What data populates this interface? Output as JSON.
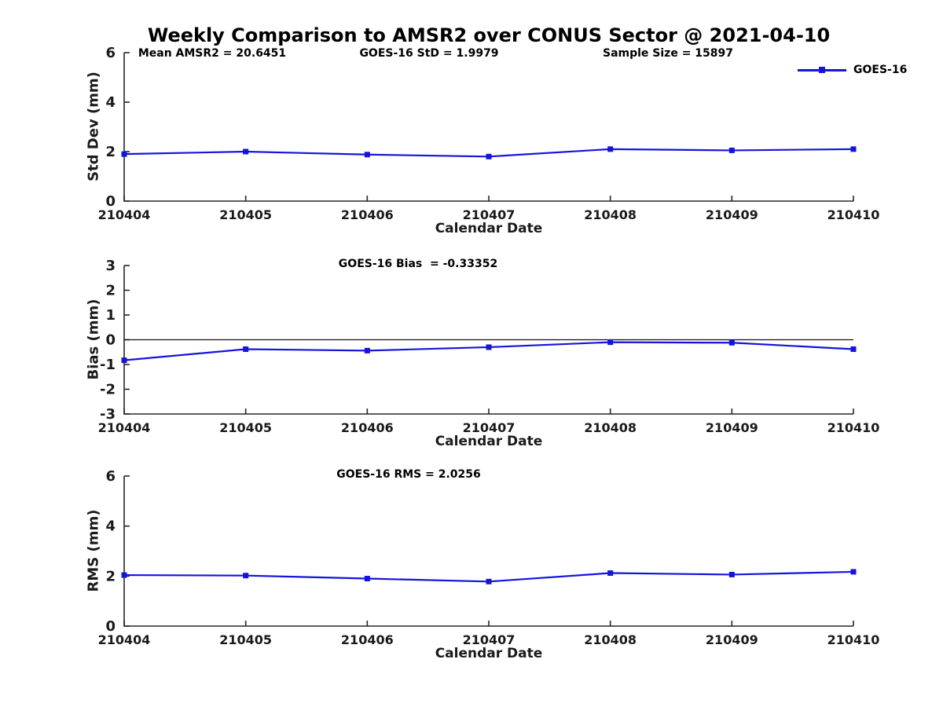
{
  "figure": {
    "title": "Weekly Comparison to AMSR2 over CONUS Sector @ 2021-04-10"
  },
  "legend": {
    "label": "GOES-16",
    "color": "#1414db"
  },
  "chart_data": [
    {
      "type": "line",
      "title": "",
      "categories": [
        "210404",
        "210405",
        "210406",
        "210407",
        "210408",
        "210409",
        "210410"
      ],
      "series": [
        {
          "name": "GOES-16",
          "color": "#1414db",
          "marker": "square",
          "values": [
            1.9,
            2.0,
            1.88,
            1.8,
            2.1,
            2.05,
            2.1
          ]
        }
      ],
      "annotations": [
        "Mean AMSR2 = 20.6451",
        "GOES-16 StD = 1.9979",
        "Sample Size = 15897"
      ],
      "xlabel": "Calendar Date",
      "ylabel": "Std Dev (mm)",
      "ylim": [
        0,
        6
      ],
      "yticks": [
        0,
        2,
        4,
        6
      ],
      "zero_line": false,
      "grid": false,
      "legend_position": "top-right"
    },
    {
      "type": "line",
      "title": "",
      "categories": [
        "210404",
        "210405",
        "210406",
        "210407",
        "210408",
        "210409",
        "210410"
      ],
      "series": [
        {
          "name": "GOES-16",
          "color": "#1414db",
          "marker": "square",
          "values": [
            -0.83,
            -0.38,
            -0.44,
            -0.3,
            -0.1,
            -0.12,
            -0.38
          ]
        }
      ],
      "annotations": [
        "GOES-16 Bias  = -0.33352"
      ],
      "xlabel": "Calendar Date",
      "ylabel": "Bias (mm)",
      "ylim": [
        -3,
        3
      ],
      "yticks": [
        -3,
        -2,
        -1,
        0,
        1,
        2,
        3
      ],
      "zero_line": true,
      "grid": false,
      "legend_position": "none"
    },
    {
      "type": "line",
      "title": "",
      "categories": [
        "210404",
        "210405",
        "210406",
        "210407",
        "210408",
        "210409",
        "210410"
      ],
      "series": [
        {
          "name": "GOES-16",
          "color": "#1414db",
          "marker": "square",
          "values": [
            2.04,
            2.02,
            1.9,
            1.78,
            2.12,
            2.06,
            2.17
          ]
        }
      ],
      "annotations": [
        "GOES-16 RMS = 2.0256"
      ],
      "xlabel": "Calendar Date",
      "ylabel": "RMS (mm)",
      "ylim": [
        0,
        6
      ],
      "yticks": [
        0,
        2,
        4,
        6
      ],
      "zero_line": false,
      "grid": false,
      "legend_position": "none"
    }
  ]
}
